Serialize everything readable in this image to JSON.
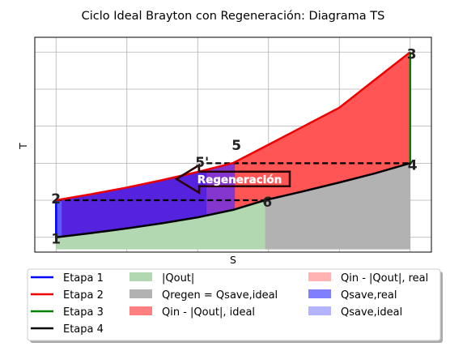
{
  "chart_data": {
    "type": "area",
    "title": "Ciclo Ideal Brayton con Regeneración: Diagrama TS",
    "xlabel": "S",
    "ylabel": "T",
    "grid": true,
    "xlim": [
      -0.06,
      1.06
    ],
    "ylim": [
      -0.08,
      1.08
    ],
    "points": [
      {
        "label": "1",
        "s": 0.0,
        "t": 0.0
      },
      {
        "label": "2",
        "s": 0.0,
        "t": 0.2
      },
      {
        "label": "3",
        "s": 1.0,
        "t": 1.0
      },
      {
        "label": "4",
        "s": 1.0,
        "t": 0.4
      },
      {
        "label": "5",
        "s": 0.505,
        "t": 0.445
      },
      {
        "label": "5'",
        "s": 0.425,
        "t": 0.405
      },
      {
        "label": "6",
        "s": 0.59,
        "t": 0.2
      }
    ],
    "series": [
      {
        "name": "Etapa 1",
        "color": "#0000ff",
        "x": [
          0,
          0
        ],
        "y": [
          0,
          0.2
        ]
      },
      {
        "name": "Etapa 2",
        "color": "#ee0000",
        "x": [
          0,
          0.1,
          0.2,
          0.3,
          0.4,
          0.5,
          0.6,
          0.7,
          0.8,
          0.9,
          1.0
        ],
        "y": [
          0.2,
          0.233,
          0.269,
          0.309,
          0.353,
          0.401,
          0.5,
          0.6,
          0.7,
          0.85,
          1.0
        ]
      },
      {
        "name": "Etapa 3",
        "color": "#008000",
        "x": [
          1,
          1
        ],
        "y": [
          1.0,
          0.4
        ]
      },
      {
        "name": "Etapa 4",
        "color": "#000000",
        "x": [
          0,
          0.1,
          0.2,
          0.3,
          0.4,
          0.5,
          0.59,
          0.7,
          0.8,
          0.9,
          1.0
        ],
        "y": [
          0.0,
          0.023,
          0.048,
          0.076,
          0.108,
          0.148,
          0.2,
          0.249,
          0.296,
          0.345,
          0.4
        ]
      }
    ],
    "areas": [
      {
        "name": "|Qout|",
        "color": "#b2d8b2"
      },
      {
        "name": "Qregen = Qsave,ideal",
        "color": "#b2b2b2"
      },
      {
        "name": "Qin - |Qout|, ideal",
        "color": "#ff8080"
      },
      {
        "name": "Qin - |Qout|, real",
        "color": "#ffb3b3"
      },
      {
        "name": "Qsave,real",
        "color": "#8080ff"
      },
      {
        "name": "Qsave,ideal",
        "color": "#b3b3ff"
      }
    ],
    "annotation": "Regeneración"
  }
}
